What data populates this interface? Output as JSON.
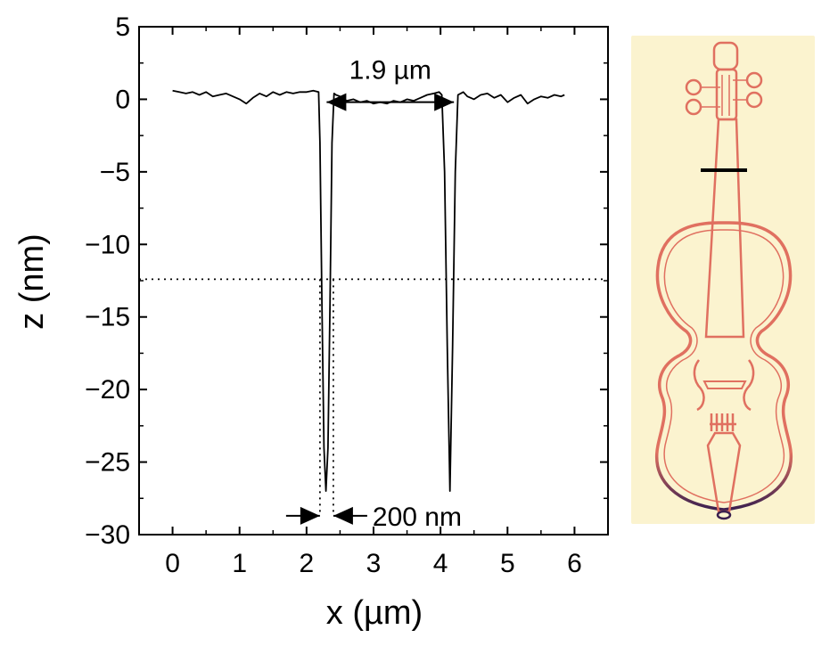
{
  "chart_data": {
    "type": "line",
    "xlabel": "x (µm)",
    "ylabel": "z (nm)",
    "xlim": [
      -0.5,
      6.5
    ],
    "ylim": [
      -30,
      5
    ],
    "xticks": [
      "0",
      "1",
      "2",
      "3",
      "4",
      "5",
      "6"
    ],
    "yticks": [
      "5",
      "0",
      "−5",
      "−10",
      "−15",
      "−20",
      "−25",
      "−30"
    ],
    "grid": false,
    "series": [
      {
        "x": [
          0.0,
          0.1,
          0.2,
          0.3,
          0.4,
          0.5,
          0.6,
          0.7,
          0.8,
          0.9,
          1.0,
          1.1,
          1.2,
          1.3,
          1.4,
          1.5,
          1.6,
          1.7,
          1.8,
          1.9,
          2.0,
          2.1,
          2.18,
          2.2,
          2.23,
          2.26,
          2.29,
          2.32,
          2.35,
          2.38,
          2.41,
          2.44,
          2.5,
          2.6,
          2.7,
          2.8,
          2.9,
          3.0,
          3.1,
          3.2,
          3.3,
          3.4,
          3.5,
          3.6,
          3.7,
          3.8,
          3.9,
          3.98,
          4.02,
          4.06,
          4.1,
          4.14,
          4.18,
          4.22,
          4.26,
          4.3,
          4.34,
          4.4,
          4.5,
          4.6,
          4.7,
          4.8,
          4.9,
          5.0,
          5.1,
          5.2,
          5.3,
          5.4,
          5.5,
          5.6,
          5.7,
          5.8,
          5.85
        ],
        "y": [
          0.6,
          0.5,
          0.4,
          0.5,
          0.3,
          0.5,
          0.2,
          0.3,
          0.4,
          0.2,
          0.0,
          -0.3,
          0.1,
          0.4,
          0.2,
          0.5,
          0.3,
          0.5,
          0.4,
          0.5,
          0.5,
          0.6,
          0.5,
          -3.0,
          -14.0,
          -24.0,
          -27.0,
          -24.0,
          -14.0,
          -3.0,
          0.4,
          0.3,
          0.2,
          -0.1,
          0.0,
          -0.2,
          -0.1,
          -0.3,
          -0.2,
          -0.3,
          -0.1,
          -0.2,
          0.0,
          -0.1,
          0.1,
          0.3,
          0.4,
          0.5,
          0.3,
          -5.0,
          -17.0,
          -27.0,
          -17.0,
          -5.0,
          0.3,
          0.4,
          0.5,
          0.2,
          0.0,
          0.3,
          0.4,
          0.1,
          0.3,
          -0.2,
          0.1,
          0.3,
          -0.3,
          0.0,
          0.2,
          0.1,
          0.3,
          0.2,
          0.3
        ]
      }
    ],
    "annotations": [
      {
        "text": "1.9 µm",
        "x_from": 2.3,
        "x_to": 4.2,
        "y": -0.2
      },
      {
        "text": "200 nm",
        "x_from": 2.2,
        "x_to": 2.4,
        "y": -28.7
      }
    ],
    "reference_line": {
      "orientation": "horizontal",
      "y": -12.4,
      "style": "dotted"
    }
  },
  "image_panel": {
    "subject": "violin-outline",
    "background_color": "#fbf3cf",
    "line_color": "#e07060",
    "dark_edge_color": "#3a1f4f",
    "marker_color": "#000000"
  }
}
